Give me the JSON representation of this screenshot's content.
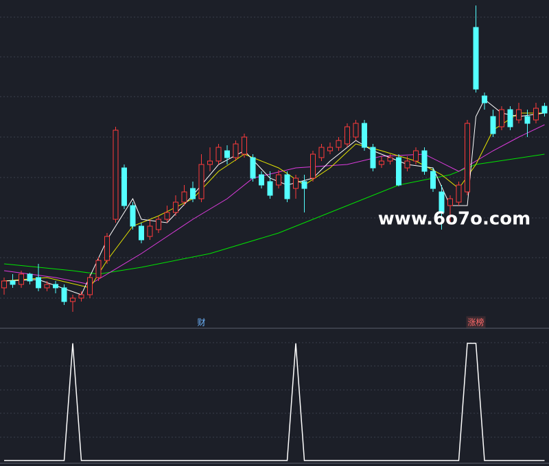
{
  "chart_data": {
    "type": "candlestick",
    "open": [
      5,
      6,
      5.5,
      7,
      6.5,
      5,
      5.5,
      5,
      3,
      3.5,
      4,
      6.5,
      9,
      15,
      22.5,
      17,
      14,
      12.5,
      13.5,
      15,
      16,
      17.5,
      19.5,
      18,
      23,
      23.5,
      25,
      24,
      24.5,
      24,
      21.5,
      20.5,
      20,
      21.5,
      19.5,
      20.5,
      21,
      24,
      25,
      25.5,
      26,
      27,
      29,
      25.5,
      23,
      23.5,
      24,
      22.5,
      23.5,
      25,
      22,
      19,
      17,
      17.5,
      19,
      43,
      33,
      30,
      28.5,
      31,
      29.5,
      30,
      29.5,
      31.5
    ],
    "close": [
      6,
      5.5,
      7,
      6,
      5,
      5.5,
      5,
      3,
      3.5,
      4,
      6.5,
      9,
      12.5,
      28,
      17,
      14,
      12,
      14,
      15,
      16,
      17.5,
      19,
      18,
      23,
      23.5,
      25.5,
      24,
      26,
      27,
      21,
      20,
      18.5,
      21.5,
      18,
      21,
      19.5,
      24.5,
      25.5,
      25.5,
      26.5,
      28.5,
      29,
      25.5,
      22.5,
      23.5,
      24,
      20,
      23.5,
      25,
      22,
      19.5,
      16,
      18,
      20,
      29,
      34,
      32,
      27.5,
      31,
      28.5,
      31,
      29,
      31.2,
      30.5
    ],
    "high": [
      6.5,
      7,
      7.5,
      7.2,
      8.5,
      6,
      6,
      5.5,
      4,
      4.5,
      7,
      9.5,
      13,
      28.5,
      23,
      17.5,
      14.5,
      15,
      15.5,
      17,
      18.5,
      20,
      20.5,
      24.5,
      25.5,
      26,
      25.8,
      26.5,
      27.5,
      24.5,
      22,
      22,
      22.2,
      22,
      21.5,
      21.5,
      25,
      26,
      26.2,
      27,
      29,
      29.5,
      29.5,
      26,
      24.2,
      24.5,
      24.5,
      24.2,
      25.5,
      25.5,
      22.5,
      20,
      18.5,
      20.5,
      29.5,
      46.2,
      33.5,
      31,
      31.5,
      31.5,
      32,
      31,
      32,
      32
    ],
    "low": [
      4,
      5,
      5,
      5.5,
      4.5,
      4.5,
      4.2,
      2.5,
      1.5,
      3,
      3.5,
      6,
      8.5,
      14.5,
      16.5,
      13.5,
      11.5,
      12,
      13,
      14.5,
      15.5,
      17,
      17.5,
      17.5,
      22,
      23,
      23,
      23.5,
      24,
      20.5,
      19.5,
      18,
      19.5,
      17.5,
      18,
      16,
      20.5,
      23.5,
      24.5,
      25,
      25.5,
      26.5,
      25,
      22,
      22.5,
      23,
      19.8,
      22,
      23,
      21.5,
      19,
      13.5,
      14.5,
      17,
      18.5,
      33.5,
      31,
      27,
      28,
      28,
      29,
      27,
      29,
      30
    ],
    "up_color": "#ff3b3b",
    "down_color": "#54ffff",
    "ylim": [
      0,
      47
    ],
    "series": [
      {
        "color": "#00e600",
        "x": [
          0,
          8,
          11,
          16,
          24,
          32,
          40,
          46,
          52,
          55,
          63
        ],
        "values": [
          8.5,
          7.5,
          7,
          8,
          10,
          13,
          17,
          20,
          21.5,
          23,
          24.5
        ]
      },
      {
        "color": "#e03ce0",
        "x": [
          0,
          3,
          6,
          10,
          16,
          22,
          26,
          29,
          34,
          40,
          44,
          49,
          53,
          57,
          60,
          63
        ],
        "values": [
          7.5,
          7,
          6.5,
          5.5,
          10,
          15,
          18,
          21,
          22.5,
          23,
          24.2,
          24.5,
          22,
          25,
          27,
          28.8
        ]
      },
      {
        "color": "#e6e600",
        "x": [
          0,
          5,
          10,
          12,
          15,
          18,
          22,
          25,
          28,
          32,
          35,
          38,
          41,
          44,
          48,
          51,
          53,
          55,
          57,
          60,
          63
        ],
        "values": [
          6,
          6.5,
          5,
          9,
          14,
          15.5,
          18,
          22,
          24.5,
          22.5,
          20,
          22.5,
          26,
          25,
          23.5,
          21.5,
          19.5,
          23,
          28,
          30.5,
          30.5
        ]
      },
      {
        "color": "#ffffff",
        "x": [
          0,
          4,
          9,
          12,
          15,
          16,
          19,
          22,
          25,
          28,
          31,
          33,
          36,
          38,
          41,
          43,
          47,
          50,
          52,
          54,
          55,
          56,
          58,
          60,
          63
        ],
        "values": [
          6,
          6.2,
          4,
          12,
          18,
          15,
          14.5,
          18.5,
          23,
          25,
          21,
          20,
          21,
          23.5,
          26.5,
          25,
          23,
          22.5,
          17,
          17,
          30,
          32.5,
          30.5,
          30,
          30.5
        ]
      }
    ],
    "signal": {
      "color": "#ffffff",
      "ylim": [
        0,
        1
      ],
      "values": [
        0,
        0,
        0,
        0,
        0,
        0,
        0,
        0,
        1,
        0,
        0,
        0,
        0,
        0,
        0,
        0,
        0,
        0,
        0,
        0,
        0,
        0,
        0,
        0,
        0,
        0,
        0,
        0,
        0,
        0,
        0,
        0,
        0,
        0,
        1,
        0,
        0,
        0,
        0,
        0,
        0,
        0,
        0,
        0,
        0,
        0,
        0,
        0,
        0,
        0,
        0,
        0,
        0,
        0,
        1,
        1,
        0,
        0,
        0,
        0,
        0,
        0,
        0,
        0
      ]
    },
    "markers": [
      {
        "text": "财",
        "index": 23,
        "color": "#6fb6ff"
      },
      {
        "text": "涨榜",
        "index": 55,
        "color": "#ff6a6a"
      }
    ],
    "watermark": "www.6o7o.com"
  }
}
